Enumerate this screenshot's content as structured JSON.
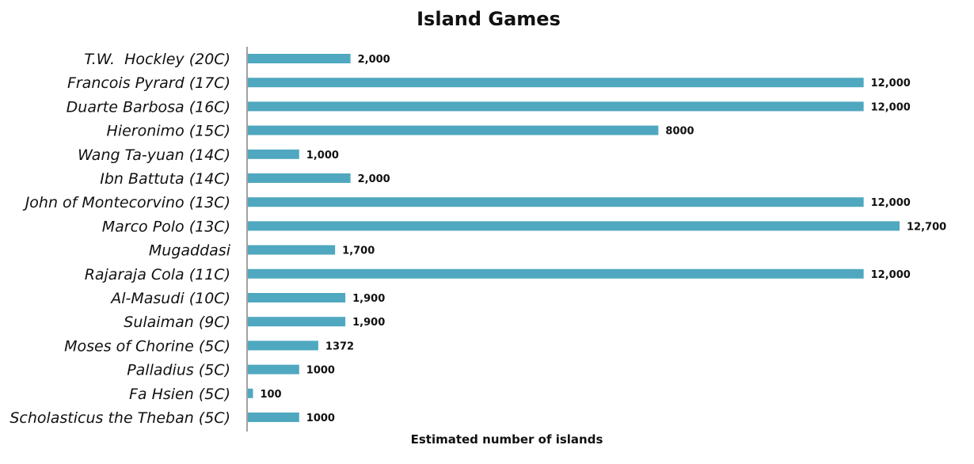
{
  "chart_data": {
    "type": "bar",
    "orientation": "horizontal",
    "title": "Island Games",
    "xlabel": "Estimated number of islands",
    "ylabel": "",
    "xlim": [
      0,
      12700
    ],
    "grid": false,
    "bar_color": "#4fa8bf",
    "categories": [
      "T.W.  Hockley (20C)",
      "Francois Pyrard (17C)",
      "Duarte Barbosa (16C)",
      "Hieronimo (15C)",
      "Wang Ta-yuan (14C)",
      "Ibn Battuta (14C)",
      "John of Montecorvino (13C)",
      "Marco Polo (13C)",
      "Mugaddasi",
      "Rajaraja Cola (11C)",
      "Al-Masudi (10C)",
      "Sulaiman (9C)",
      "Moses of Chorine (5C)",
      "Palladius (5C)",
      "Fa Hsien (5C)",
      "Scholasticus the Theban (5C)"
    ],
    "values": [
      2000,
      12000,
      12000,
      8000,
      1000,
      2000,
      12000,
      12700,
      1700,
      12000,
      1900,
      1900,
      1372,
      1000,
      100,
      1000
    ],
    "value_labels": [
      "2,000",
      "12,000",
      "12,000",
      "8000",
      "1,000",
      "2,000",
      "12,000",
      "12,700",
      "1,700",
      "12,000",
      "1,900",
      "1,900",
      "1372",
      "1000",
      "100",
      "1000"
    ]
  }
}
